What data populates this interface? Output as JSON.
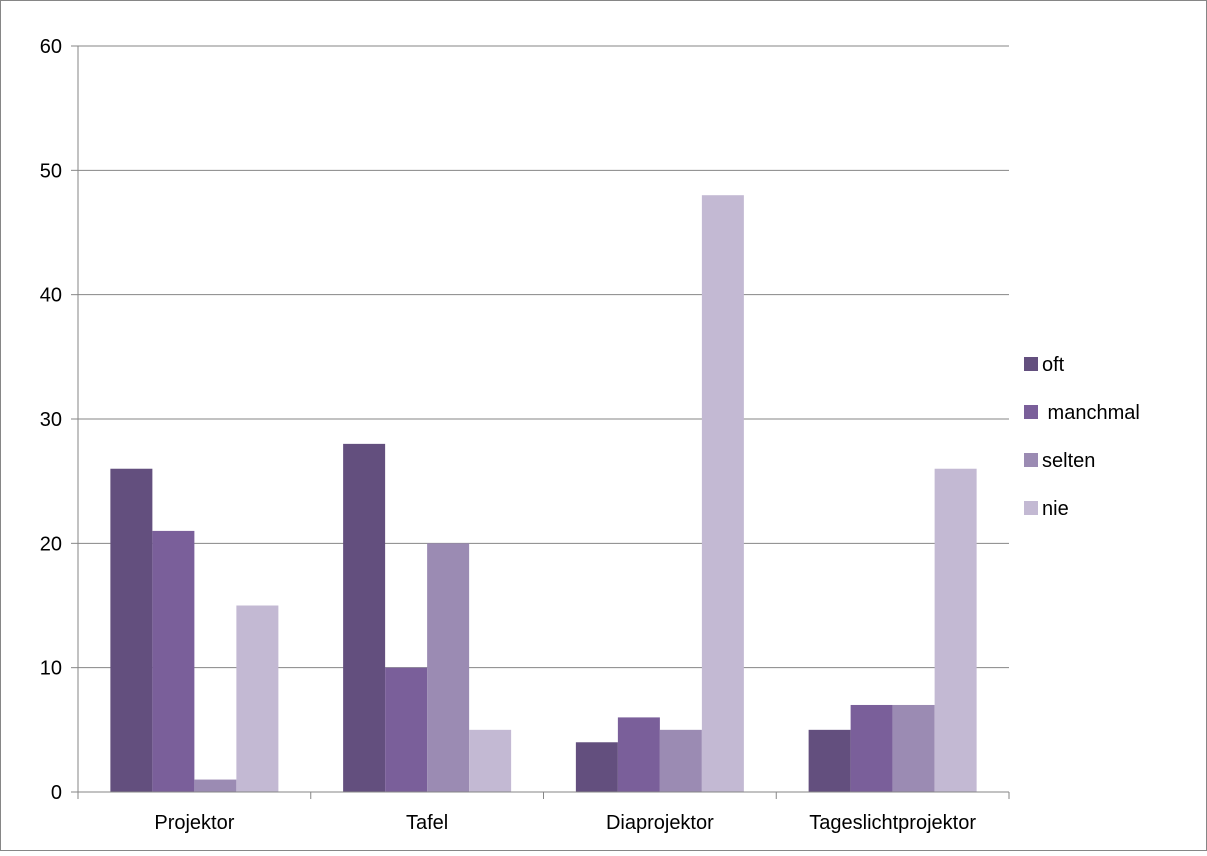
{
  "chart_data": {
    "type": "bar",
    "categories": [
      "Projektor",
      "Tafel",
      "Diaprojektor",
      "Tageslichtprojektor"
    ],
    "series": [
      {
        "name": "oft",
        "values": [
          26,
          28,
          4,
          5
        ],
        "color": "#634f7e"
      },
      {
        "name": " manchmal",
        "values": [
          21,
          10,
          6,
          7
        ],
        "color": "#7a5f9a"
      },
      {
        "name": "selten",
        "values": [
          1,
          20,
          5,
          7
        ],
        "color": "#9b8bb3"
      },
      {
        "name": "nie",
        "values": [
          15,
          5,
          48,
          26
        ],
        "color": "#c3b9d3"
      }
    ],
    "ylim": [
      0,
      60
    ],
    "yticks": [
      0,
      10,
      20,
      30,
      40,
      50,
      60
    ],
    "grid": true,
    "legend": "right",
    "title": "",
    "xlabel": "",
    "ylabel": ""
  },
  "colors": {
    "gridline": "#868686",
    "axis": "#868686",
    "frame": "#868686"
  }
}
